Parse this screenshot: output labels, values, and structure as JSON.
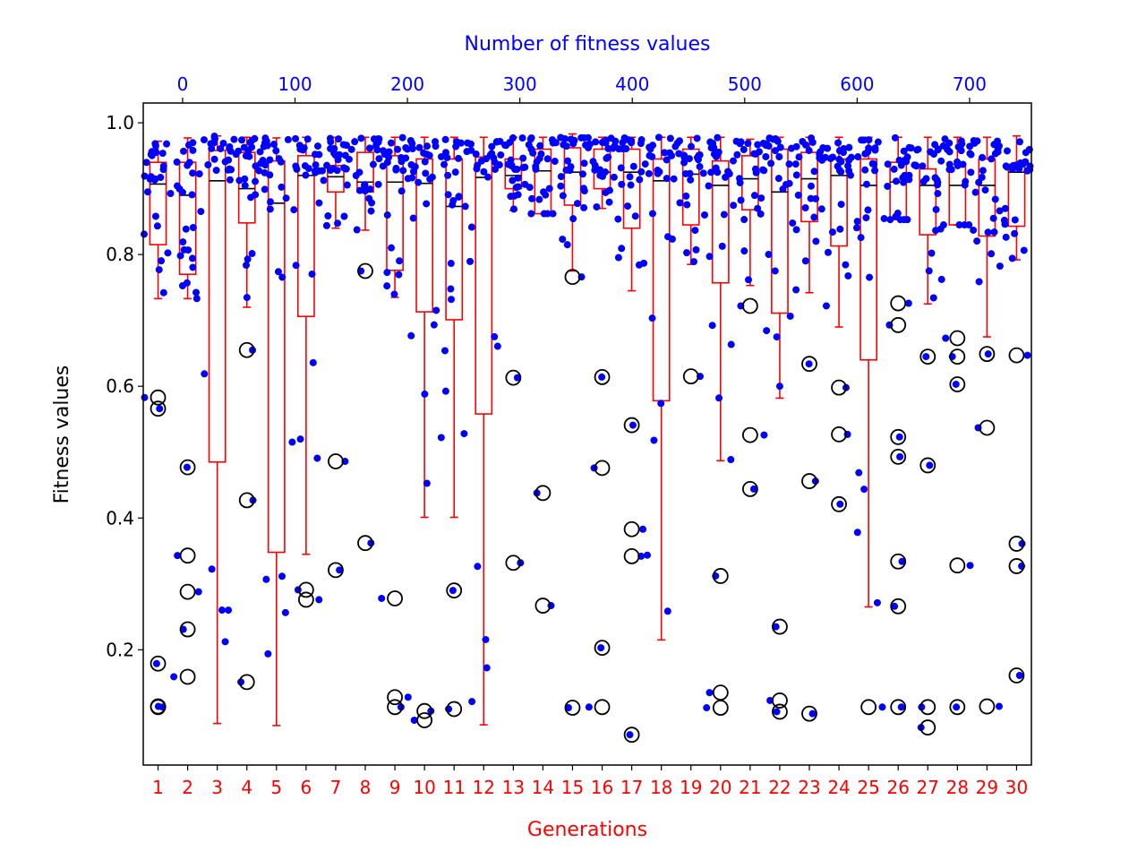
{
  "chart_data": {
    "type": "boxplot",
    "xlabel": "Generations",
    "ylabel": "Fitness values",
    "top_xlabel": "Number of fitness values",
    "categories": [
      "1",
      "2",
      "3",
      "4",
      "5",
      "6",
      "7",
      "8",
      "9",
      "10",
      "11",
      "12",
      "13",
      "14",
      "15",
      "16",
      "17",
      "18",
      "19",
      "20",
      "21",
      "22",
      "23",
      "24",
      "25",
      "26",
      "27",
      "28",
      "29",
      "30"
    ],
    "ylim": [
      0.025,
      1.03
    ],
    "yticks": [
      "0.2",
      "0.4",
      "0.6",
      "0.8",
      "1.0"
    ],
    "top_xticks": [
      "0",
      "100",
      "200",
      "300",
      "400",
      "500",
      "600",
      "700"
    ],
    "top_xlim": [
      -35,
      755
    ],
    "grid": false,
    "colors": {
      "box": "#ff0000",
      "median": "#000000",
      "flier": "#000000",
      "points": "#0000ff",
      "bottom_axis_text": "#ff0000",
      "top_axis_text": "#0000ff"
    },
    "boxes": [
      {
        "q1": 0.815,
        "median": 0.907,
        "q3": 0.94,
        "whislo": 0.733,
        "whishi": 0.972,
        "fliers": [
          0.583,
          0.566,
          0.179,
          0.114,
          0.113
        ]
      },
      {
        "q1": 0.77,
        "median": 0.89,
        "q3": 0.94,
        "whislo": 0.733,
        "whishi": 0.977,
        "fliers": [
          0.477,
          0.343,
          0.288,
          0.231,
          0.159
        ]
      },
      {
        "q1": 0.485,
        "median": 0.912,
        "q3": 0.958,
        "whislo": 0.088,
        "whishi": 0.98
      },
      {
        "q1": 0.848,
        "median": 0.9,
        "q3": 0.955,
        "whislo": 0.72,
        "whishi": 0.978,
        "fliers": [
          0.655,
          0.427,
          0.151
        ]
      },
      {
        "q1": 0.348,
        "median": 0.878,
        "q3": 0.942,
        "whislo": 0.085,
        "whishi": 0.977
      },
      {
        "q1": 0.706,
        "median": 0.92,
        "q3": 0.95,
        "whislo": 0.345,
        "whishi": 0.978,
        "fliers": [
          0.291,
          0.276
        ]
      },
      {
        "q1": 0.895,
        "median": 0.918,
        "q3": 0.935,
        "whislo": 0.84,
        "whishi": 0.978,
        "fliers": [
          0.486,
          0.321
        ]
      },
      {
        "q1": 0.895,
        "median": 0.91,
        "q3": 0.955,
        "whislo": 0.837,
        "whishi": 0.978,
        "fliers": [
          0.775,
          0.362
        ]
      },
      {
        "q1": 0.776,
        "median": 0.91,
        "q3": 0.95,
        "whislo": 0.735,
        "whishi": 0.978,
        "fliers": [
          0.278,
          0.128,
          0.113
        ]
      },
      {
        "q1": 0.713,
        "median": 0.908,
        "q3": 0.945,
        "whislo": 0.401,
        "whishi": 0.978,
        "fliers": [
          0.107,
          0.093
        ]
      },
      {
        "q1": 0.701,
        "median": 0.873,
        "q3": 0.945,
        "whislo": 0.401,
        "whishi": 0.978,
        "fliers": [
          0.29,
          0.11
        ]
      },
      {
        "q1": 0.558,
        "median": 0.917,
        "q3": 0.948,
        "whislo": 0.086,
        "whishi": 0.978
      },
      {
        "q1": 0.9,
        "median": 0.92,
        "q3": 0.945,
        "whislo": 0.867,
        "whishi": 0.978,
        "fliers": [
          0.613,
          0.332
        ]
      },
      {
        "q1": 0.862,
        "median": 0.927,
        "q3": 0.96,
        "whislo": 0.862,
        "whishi": 0.978,
        "fliers": [
          0.438,
          0.267
        ]
      },
      {
        "q1": 0.875,
        "median": 0.925,
        "q3": 0.962,
        "whislo": 0.775,
        "whishi": 0.983,
        "fliers": [
          0.766,
          0.112
        ]
      },
      {
        "q1": 0.9,
        "median": 0.925,
        "q3": 0.96,
        "whislo": 0.87,
        "whishi": 0.978,
        "fliers": [
          0.614,
          0.476,
          0.203,
          0.113
        ]
      },
      {
        "q1": 0.84,
        "median": 0.925,
        "q3": 0.96,
        "whislo": 0.745,
        "whishi": 0.978,
        "fliers": [
          0.541,
          0.383,
          0.342,
          0.071
        ]
      },
      {
        "q1": 0.578,
        "median": 0.912,
        "q3": 0.945,
        "whislo": 0.215,
        "whishi": 0.978
      },
      {
        "q1": 0.845,
        "median": 0.922,
        "q3": 0.96,
        "whislo": 0.785,
        "whishi": 0.978,
        "fliers": [
          0.615
        ]
      },
      {
        "q1": 0.757,
        "median": 0.905,
        "q3": 0.942,
        "whislo": 0.487,
        "whishi": 0.978,
        "fliers": [
          0.312,
          0.135,
          0.112
        ]
      },
      {
        "q1": 0.868,
        "median": 0.915,
        "q3": 0.95,
        "whislo": 0.753,
        "whishi": 0.975,
        "fliers": [
          0.722,
          0.526,
          0.444
        ]
      },
      {
        "q1": 0.711,
        "median": 0.895,
        "q3": 0.96,
        "whislo": 0.582,
        "whishi": 0.978,
        "fliers": [
          0.235,
          0.123,
          0.106
        ]
      },
      {
        "q1": 0.85,
        "median": 0.915,
        "q3": 0.955,
        "whislo": 0.742,
        "whishi": 0.978,
        "fliers": [
          0.634,
          0.456,
          0.103
        ]
      },
      {
        "q1": 0.813,
        "median": 0.92,
        "q3": 0.945,
        "whislo": 0.69,
        "whishi": 0.978,
        "fliers": [
          0.598,
          0.527,
          0.421
        ]
      },
      {
        "q1": 0.64,
        "median": 0.905,
        "q3": 0.945,
        "whislo": 0.265,
        "whishi": 0.978,
        "fliers": [
          0.113
        ]
      },
      {
        "q1": 0.853,
        "median": 0.91,
        "q3": 0.94,
        "whislo": 0.853,
        "whishi": 0.978,
        "fliers": [
          0.726,
          0.693,
          0.523,
          0.493,
          0.334,
          0.266,
          0.113
        ]
      },
      {
        "q1": 0.83,
        "median": 0.905,
        "q3": 0.93,
        "whislo": 0.725,
        "whishi": 0.978,
        "fliers": [
          0.645,
          0.48,
          0.113,
          0.082
        ]
      },
      {
        "q1": 0.845,
        "median": 0.905,
        "q3": 0.937,
        "whislo": 0.845,
        "whishi": 0.978,
        "fliers": [
          0.673,
          0.645,
          0.603,
          0.328,
          0.113
        ]
      },
      {
        "q1": 0.828,
        "median": 0.905,
        "q3": 0.945,
        "whislo": 0.675,
        "whishi": 0.978,
        "fliers": [
          0.649,
          0.537,
          0.114
        ]
      },
      {
        "q1": 0.843,
        "median": 0.925,
        "q3": 0.937,
        "whislo": 0.792,
        "whishi": 0.98,
        "fliers": [
          0.647,
          0.361,
          0.327,
          0.161
        ]
      }
    ]
  }
}
